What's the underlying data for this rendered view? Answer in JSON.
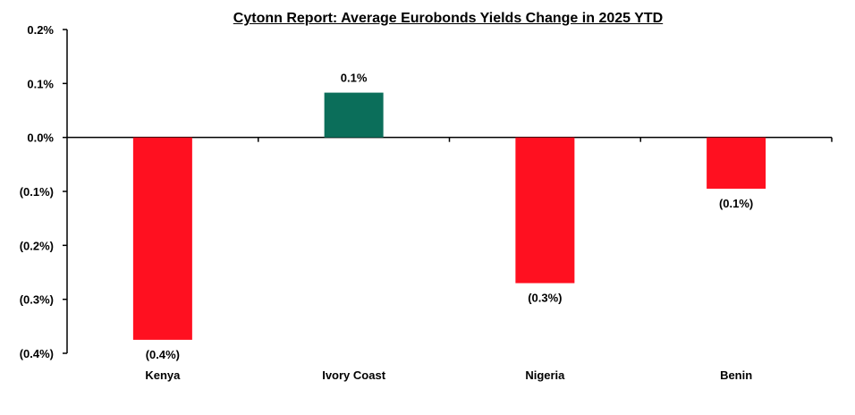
{
  "chart_data": {
    "type": "bar",
    "title": "Cytonn Report: Average Eurobonds Yields Change in 2025 YTD",
    "xlabel": "",
    "ylabel": "",
    "categories": [
      "Kenya",
      "Ivory Coast",
      "Nigeria",
      "Benin"
    ],
    "values": [
      -0.375,
      0.083,
      -0.27,
      -0.095
    ],
    "data_labels": [
      "(0.4%)",
      "0.1%",
      "(0.3%)",
      "(0.1%)"
    ],
    "ylim": [
      -0.4,
      0.2
    ],
    "yticks": [
      0.2,
      0.1,
      0.0,
      -0.1,
      -0.2,
      -0.3,
      -0.4
    ],
    "ytick_labels": [
      "0.2%",
      "0.1%",
      "0.0%",
      "(0.1%)",
      "(0.2%)",
      "(0.3%)",
      "(0.4%)"
    ],
    "grid": false,
    "legend": "none",
    "colors": {
      "positive": "#0b6e5a",
      "negative": "#ff1020"
    }
  }
}
